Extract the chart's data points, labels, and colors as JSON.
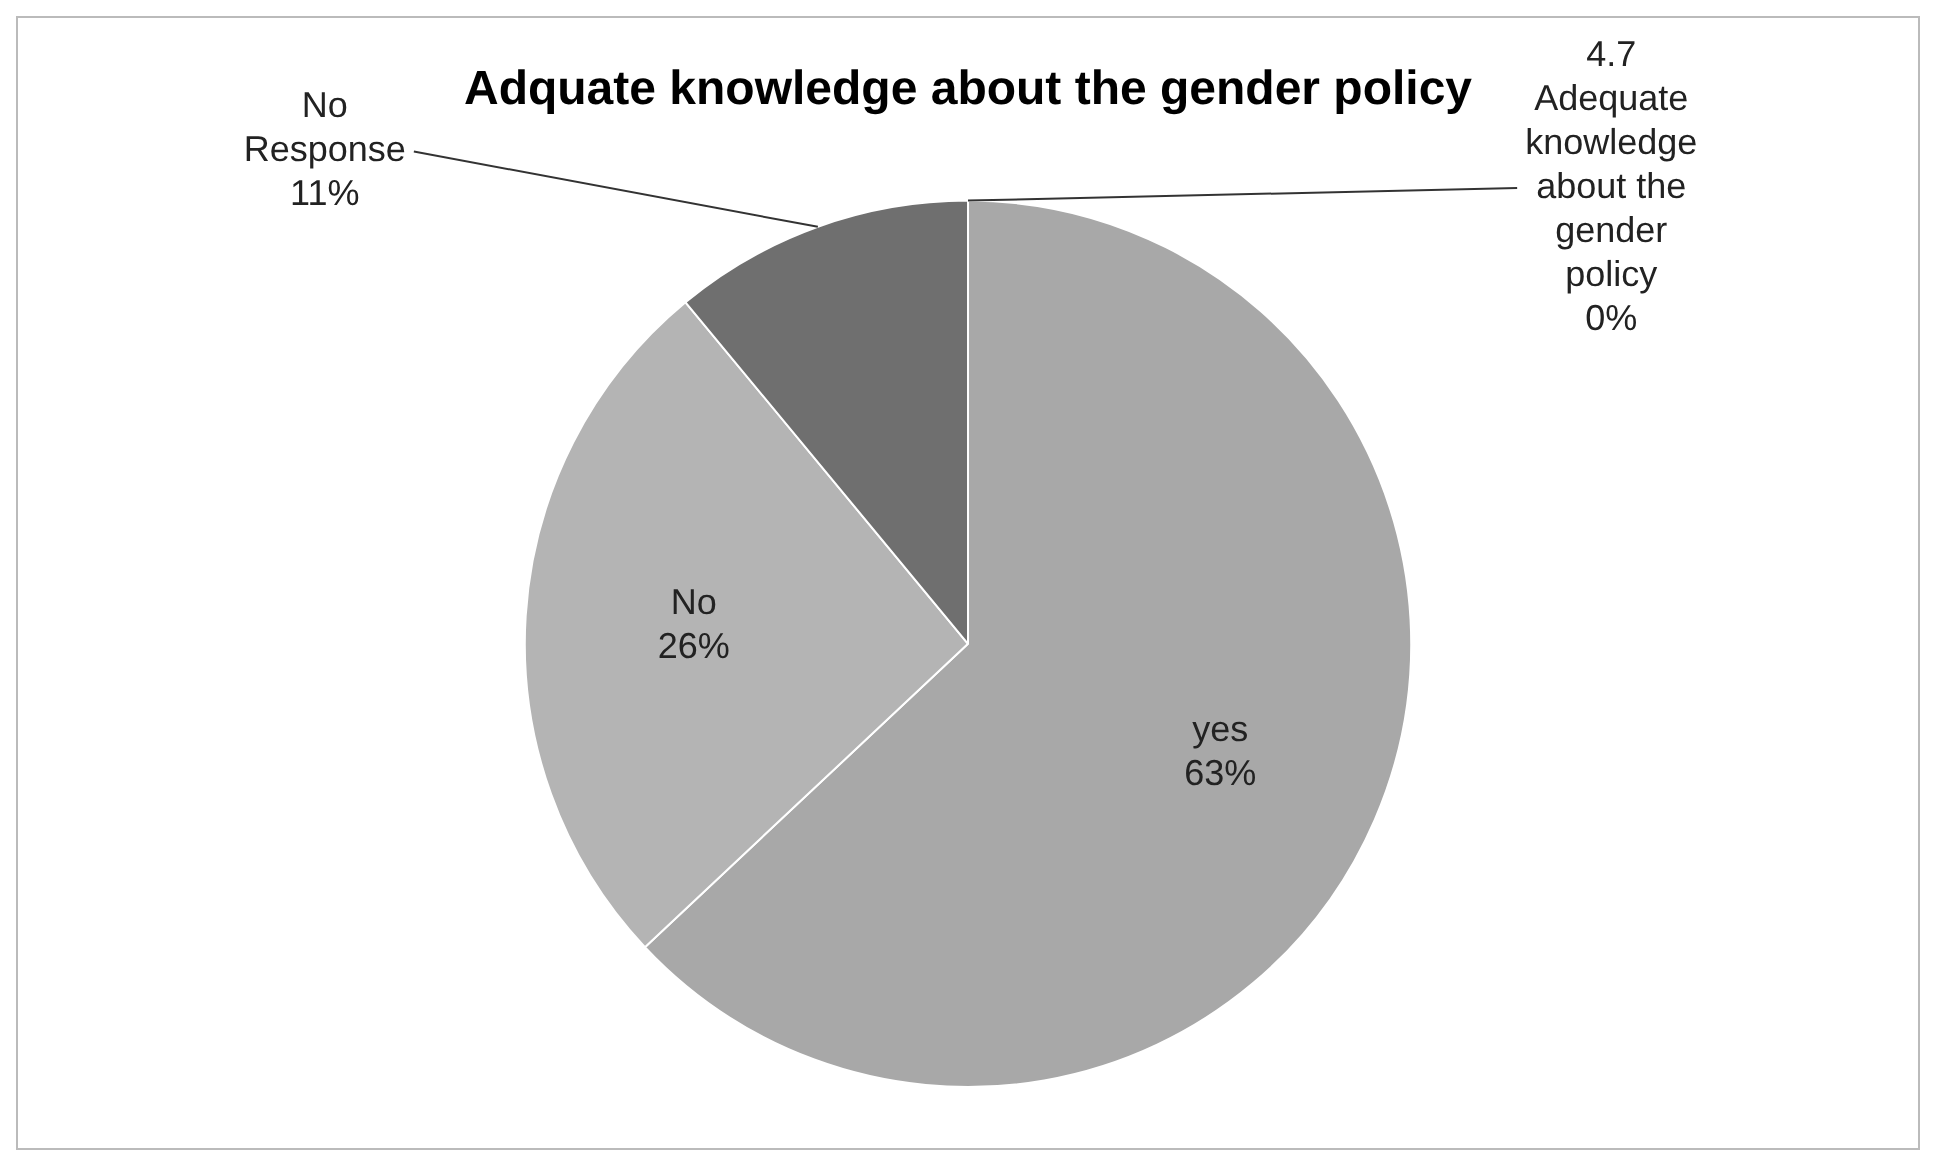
{
  "chart_data": {
    "type": "pie",
    "title": "Adquate knowledge about the gender policy",
    "categories": [
      "yes",
      "No",
      "No Response",
      "4.7 Adequate knowledge about the gender policy"
    ],
    "values": [
      63,
      26,
      11,
      0
    ],
    "colors": [
      "#a8a8a8",
      "#b4b4b4",
      "#6f6f6f",
      "#8a8a8a"
    ],
    "value_labels": [
      "63%",
      "26%",
      "11%",
      "0%"
    ],
    "legend": false
  }
}
